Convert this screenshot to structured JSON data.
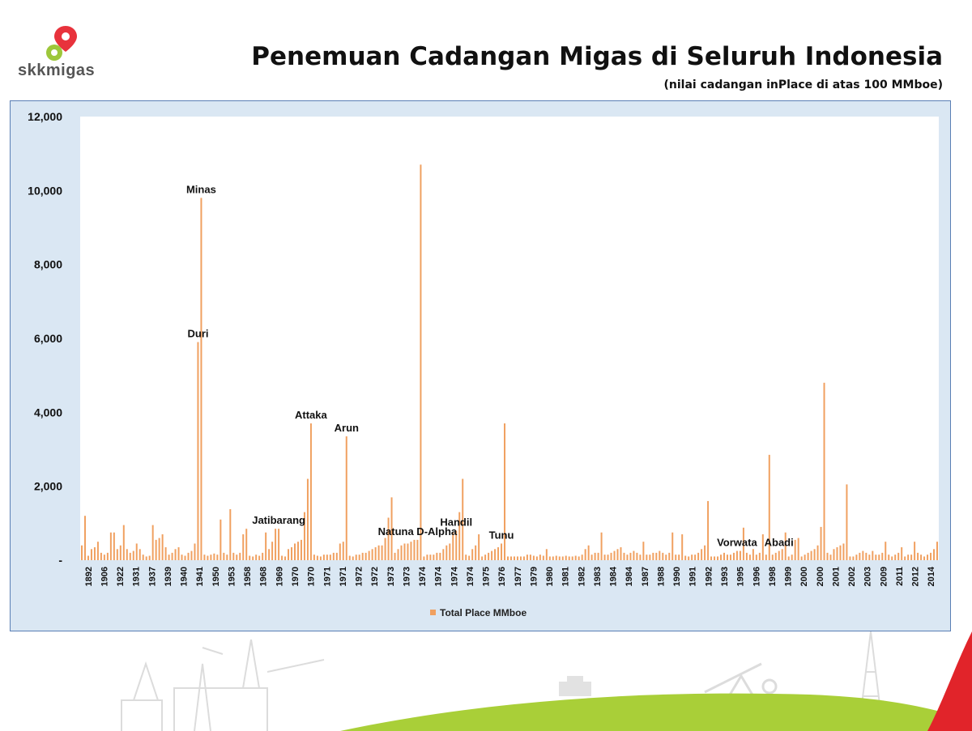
{
  "header": {
    "logo_text": "skkmigas",
    "title": "Penemuan Cadangan Migas di Seluruh Indonesia",
    "subtitle": "(nilai cadangan inPlace di atas 100 MMboe)"
  },
  "colors": {
    "bar": "#f0a060",
    "plot_bg": "#ffffff",
    "chart_bg": "#dae7f3",
    "border": "#5a7fb5",
    "logo_red": "#e8323c",
    "logo_green": "#9dc73a",
    "hill_green": "#a9cf38",
    "hill_red": "#e1242a"
  },
  "chart_data": {
    "type": "bar",
    "title": "",
    "xlabel": "",
    "ylabel": "",
    "ylim": [
      0,
      12000
    ],
    "y_ticks": [
      {
        "value": 0,
        "label": "-"
      },
      {
        "value": 2000,
        "label": "2,000"
      },
      {
        "value": 4000,
        "label": "4,000"
      },
      {
        "value": 6000,
        "label": "6,000"
      },
      {
        "value": 8000,
        "label": "8,000"
      },
      {
        "value": 10000,
        "label": "10,000"
      },
      {
        "value": 12000,
        "label": "12,000"
      }
    ],
    "x_tick_labels": [
      "1892",
      "1906",
      "1922",
      "1931",
      "1937",
      "1939",
      "1940",
      "1941",
      "1950",
      "1953",
      "1958",
      "1968",
      "1969",
      "1970",
      "1970",
      "1971",
      "1971",
      "1972",
      "1972",
      "1973",
      "1973",
      "1974",
      "1974",
      "1974",
      "1974",
      "1975",
      "1976",
      "1977",
      "1979",
      "1980",
      "1981",
      "1982",
      "1983",
      "1984",
      "1984",
      "1987",
      "1988",
      "1990",
      "1991",
      "1992",
      "1993",
      "1995",
      "1996",
      "1998",
      "1999",
      "2000",
      "2000",
      "2001",
      "2002",
      "2003",
      "2009",
      "2011",
      "2012",
      "2014"
    ],
    "grid": false,
    "legend": {
      "position": "bottom",
      "entries": [
        "Total Place MMboe"
      ]
    },
    "series": [
      {
        "name": "Total Place MMboe",
        "values": [
          400,
          1200,
          120,
          300,
          350,
          500,
          200,
          150,
          200,
          750,
          750,
          300,
          400,
          950,
          300,
          200,
          250,
          450,
          300,
          150,
          100,
          120,
          950,
          550,
          600,
          700,
          350,
          150,
          200,
          300,
          350,
          150,
          120,
          200,
          250,
          450,
          5900,
          9800,
          150,
          120,
          150,
          180,
          150,
          1100,
          200,
          150,
          1380,
          200,
          150,
          200,
          700,
          850,
          120,
          100,
          150,
          120,
          200,
          750,
          300,
          500,
          850,
          850,
          120,
          100,
          300,
          350,
          450,
          500,
          550,
          1300,
          2200,
          3700,
          150,
          120,
          100,
          150,
          150,
          150,
          200,
          200,
          450,
          500,
          3350,
          120,
          100,
          150,
          150,
          200,
          200,
          250,
          300,
          350,
          400,
          400,
          600,
          1150,
          1700,
          200,
          300,
          400,
          450,
          450,
          500,
          550,
          550,
          10700,
          100,
          150,
          150,
          150,
          200,
          200,
          300,
          400,
          450,
          750,
          800,
          1300,
          2200,
          150,
          120,
          300,
          400,
          700,
          100,
          150,
          200,
          250,
          300,
          350,
          450,
          3700,
          100,
          100,
          100,
          100,
          100,
          100,
          150,
          150,
          120,
          100,
          150,
          120,
          300,
          100,
          100,
          120,
          100,
          100,
          120,
          100,
          100,
          120,
          100,
          150,
          300,
          400,
          150,
          200,
          200,
          750,
          150,
          150,
          200,
          250,
          300,
          350,
          200,
          150,
          200,
          250,
          200,
          150,
          500,
          150,
          150,
          200,
          200,
          250,
          200,
          150,
          200,
          750,
          150,
          150,
          700,
          120,
          100,
          150,
          150,
          200,
          300,
          400,
          1600,
          100,
          100,
          100,
          150,
          200,
          150,
          150,
          200,
          250,
          250,
          880,
          200,
          150,
          300,
          150,
          200,
          700,
          150,
          2850,
          150,
          200,
          250,
          300,
          750,
          100,
          150,
          550,
          600,
          100,
          150,
          200,
          250,
          300,
          400,
          900,
          4800,
          200,
          150,
          300,
          350,
          400,
          450,
          2050,
          100,
          100,
          150,
          200,
          250,
          200,
          150,
          250,
          150,
          150,
          200,
          500,
          150,
          100,
          150,
          200,
          350,
          100,
          150,
          150,
          500,
          200,
          150,
          100,
          150,
          200,
          300,
          500
        ]
      }
    ],
    "annotations": [
      {
        "label": "Duri",
        "index": 36
      },
      {
        "label": "Minas",
        "index": 37
      },
      {
        "label": "Jatibarang",
        "index": 61
      },
      {
        "label": "Attaka",
        "index": 71
      },
      {
        "label": "Arun",
        "index": 82
      },
      {
        "label": "Natuna D-Alpha",
        "index": 104
      },
      {
        "label": "Handil",
        "index": 116
      },
      {
        "label": "Tunu",
        "index": 130
      },
      {
        "label": "Vorwata",
        "index": 203
      },
      {
        "label": "Abadi",
        "index": 216
      }
    ]
  }
}
